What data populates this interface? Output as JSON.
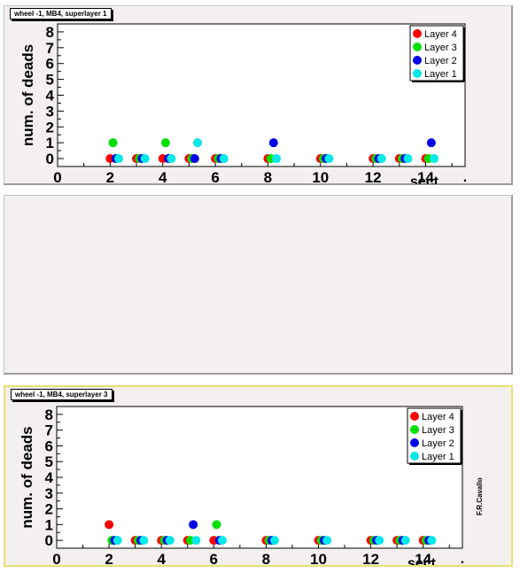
{
  "colors": {
    "pad_bg": "#f4f0f0",
    "selected_border": "#e8e070",
    "layer4": "#ff0000",
    "layer3": "#00e000",
    "layer2": "#0000e8",
    "layer1": "#00e8e8"
  },
  "pads": {
    "top_title": "wheel -1, MB4, superlayer 1",
    "bottom_title": "wheel -1, MB4, superlayer 3"
  },
  "signature": "F.R.Cavallo",
  "chart_data": [
    {
      "type": "scatter",
      "title": "wheel -1, MB4, superlayer 1",
      "xlabel": "sect",
      "ylabel": "num. of deads",
      "xlim": [
        0,
        15.5
      ],
      "ylim": [
        -0.5,
        8.5
      ],
      "xticks": [
        0,
        2,
        4,
        6,
        8,
        10,
        12,
        14
      ],
      "yticks": [
        0,
        1,
        2,
        3,
        4,
        5,
        6,
        7,
        8
      ],
      "legend_position": "top-right",
      "series": [
        {
          "name": "Layer 4",
          "color": "#ff0000",
          "x": [
            2,
            3,
            4,
            5,
            6,
            8,
            10,
            12,
            13,
            14
          ],
          "y": [
            0,
            0,
            0,
            0,
            0,
            0,
            0,
            0,
            0,
            0
          ]
        },
        {
          "name": "Layer 3",
          "color": "#00e000",
          "x": [
            2,
            3,
            4,
            5,
            6,
            8,
            10,
            12,
            13,
            14
          ],
          "y": [
            1,
            0,
            1,
            0,
            0,
            0,
            0,
            0,
            0,
            0
          ]
        },
        {
          "name": "Layer 2",
          "color": "#0000e8",
          "x": [
            2,
            3,
            4,
            5,
            6,
            8,
            10,
            12,
            13,
            14
          ],
          "y": [
            0,
            0,
            0,
            0,
            0,
            1,
            0,
            0,
            0,
            1
          ]
        },
        {
          "name": "Layer 1",
          "color": "#00e8e8",
          "x": [
            2,
            3,
            4,
            5,
            6,
            8,
            10,
            12,
            13,
            14
          ],
          "y": [
            0,
            0,
            0,
            1,
            0,
            0,
            0,
            0,
            0,
            0
          ]
        }
      ]
    },
    {
      "type": "scatter",
      "title": "wheel -1, MB4, superlayer 3",
      "xlabel": "sect",
      "ylabel": "num. of deads",
      "xlim": [
        0,
        15.5
      ],
      "ylim": [
        -0.5,
        8.5
      ],
      "xticks": [
        0,
        2,
        4,
        6,
        8,
        10,
        12,
        14
      ],
      "yticks": [
        0,
        1,
        2,
        3,
        4,
        5,
        6,
        7,
        8
      ],
      "legend_position": "top-right",
      "series": [
        {
          "name": "Layer 4",
          "color": "#ff0000",
          "x": [
            2,
            3,
            4,
            5,
            6,
            8,
            10,
            12,
            13,
            14
          ],
          "y": [
            1,
            0,
            0,
            0,
            0,
            0,
            0,
            0,
            0,
            0
          ]
        },
        {
          "name": "Layer 3",
          "color": "#00e000",
          "x": [
            2,
            3,
            4,
            5,
            6,
            8,
            10,
            12,
            13,
            14
          ],
          "y": [
            0,
            0,
            0,
            0,
            1,
            0,
            0,
            0,
            0,
            0
          ]
        },
        {
          "name": "Layer 2",
          "color": "#0000e8",
          "x": [
            2,
            3,
            4,
            5,
            6,
            8,
            10,
            12,
            13,
            14
          ],
          "y": [
            0,
            0,
            0,
            1,
            0,
            0,
            0,
            0,
            0,
            0
          ]
        },
        {
          "name": "Layer 1",
          "color": "#00e8e8",
          "x": [
            2,
            3,
            4,
            5,
            6,
            8,
            10,
            12,
            13,
            14
          ],
          "y": [
            0,
            0,
            0,
            0,
            0,
            0,
            0,
            0,
            0,
            0
          ]
        }
      ]
    }
  ]
}
